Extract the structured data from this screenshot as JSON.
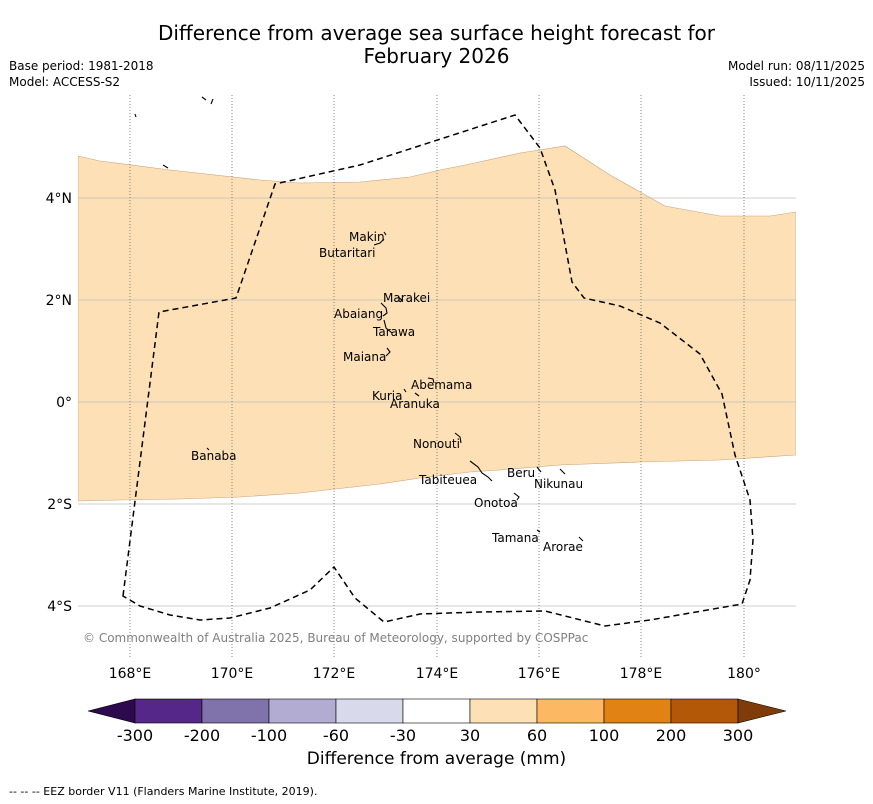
{
  "header": {
    "title_line1": "Difference from average sea surface height forecast for",
    "title_line2": "February 2026",
    "base_period": "Base period: 1981-2018",
    "model": "Model: ACCESS-S2",
    "model_run": "Model run: 08/11/2025",
    "issued": "Issued: 10/11/2025"
  },
  "map": {
    "lon_labels": [
      "168°E",
      "170°E",
      "172°E",
      "174°E",
      "176°E",
      "178°E",
      "180°"
    ],
    "lat_labels": [
      "4°N",
      "2°N",
      "0°",
      "2°S",
      "4°S"
    ],
    "shaded_category": "30 to 60",
    "places": [
      {
        "name": "Makin"
      },
      {
        "name": "Butaritari"
      },
      {
        "name": "Marakei"
      },
      {
        "name": "Abaiang"
      },
      {
        "name": "Tarawa"
      },
      {
        "name": "Maiana"
      },
      {
        "name": "Abemama"
      },
      {
        "name": "Kuria"
      },
      {
        "name": "Aranuka"
      },
      {
        "name": "Nonouti"
      },
      {
        "name": "Banaba"
      },
      {
        "name": "Beru"
      },
      {
        "name": "Tabiteuea"
      },
      {
        "name": "Nikunau"
      },
      {
        "name": "Onotoa"
      },
      {
        "name": "Tamana"
      },
      {
        "name": "Arorae"
      }
    ],
    "copyright": "© Commonwealth of Australia 2025, Bureau of Meteorology, supported by COSPPac"
  },
  "colorbar": {
    "tick_labels": [
      "-300",
      "-200",
      "-100",
      "-60",
      "-30",
      "30",
      "60",
      "100",
      "200",
      "300"
    ],
    "colors": [
      "#2d0a4e",
      "#542788",
      "#8073ac",
      "#b2abd2",
      "#d8daeb",
      "#ffffff",
      "#fee0b6",
      "#fdb863",
      "#e08214",
      "#b35806",
      "#7f3b08"
    ],
    "label": "Difference from average (mm)"
  },
  "footer": {
    "eez_note": "--  --  -- EEZ border V11 (Flanders Marine Institute, 2019)."
  }
}
